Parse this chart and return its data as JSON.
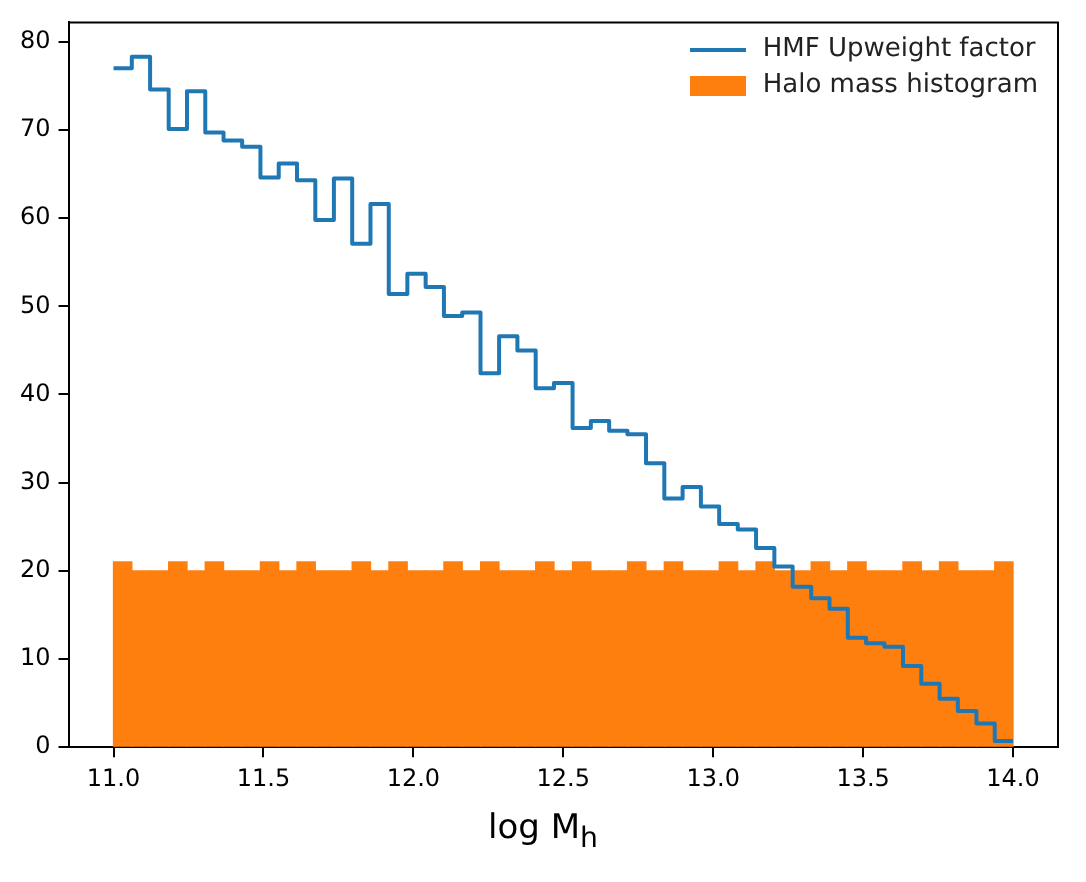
{
  "chart_data": {
    "type": "histogram",
    "xlabel": "log M$_{h}$",
    "bins": [
      11,
      11.061,
      11.122,
      11.184,
      11.245,
      11.306,
      11.367,
      11.429,
      11.49,
      11.551,
      11.612,
      11.673,
      11.735,
      11.796,
      11.857,
      11.918,
      11.98,
      12.041,
      12.102,
      12.163,
      12.224,
      12.286,
      12.347,
      12.408,
      12.469,
      12.531,
      12.592,
      12.653,
      12.714,
      12.776,
      12.837,
      12.898,
      12.959,
      13.02,
      13.082,
      13.143,
      13.204,
      13.265,
      13.327,
      13.388,
      13.449,
      13.51,
      13.571,
      13.633,
      13.694,
      13.755,
      13.816,
      13.878,
      13.939,
      14
    ],
    "series": [
      {
        "name": "HMF Upweight factor",
        "type": "step",
        "color": "#1f77b4",
        "x": [
          11,
          11.061,
          11.122,
          11.184,
          11.245,
          11.306,
          11.367,
          11.429,
          11.49,
          11.551,
          11.612,
          11.673,
          11.735,
          11.796,
          11.857,
          11.918,
          11.98,
          12.041,
          12.102,
          12.163,
          12.224,
          12.286,
          12.347,
          12.408,
          12.469,
          12.531,
          12.592,
          12.653,
          12.714,
          12.776,
          12.837,
          12.898,
          12.959,
          13.02,
          13.082,
          13.143,
          13.204,
          13.265,
          13.327,
          13.388,
          13.449,
          13.51,
          13.571,
          13.633,
          13.694,
          13.755,
          13.816,
          13.878,
          13.939,
          14
        ],
        "values": [
          77.0,
          78.3,
          74.6,
          70.1,
          74.4,
          69.7,
          68.8,
          68.1,
          64.6,
          66.2,
          64.3,
          59.8,
          64.5,
          57.1,
          61.6,
          51.4,
          53.7,
          52.2,
          48.9,
          49.3,
          42.4,
          46.6,
          45.0,
          40.7,
          41.3,
          36.2,
          37.0,
          35.9,
          35.5,
          32.2,
          28.2,
          29.5,
          27.3,
          25.3,
          24.7,
          22.6,
          20.5,
          18.2,
          16.9,
          15.7,
          12.4,
          11.8,
          11.4,
          9.2,
          7.2,
          5.5,
          4.1,
          2.7,
          0.7,
          0.7
        ]
      },
      {
        "name": "Halo mass histogram",
        "type": "histogram",
        "color": "#ff7f0e",
        "values": [
          21,
          20,
          20,
          21,
          20,
          21,
          20,
          20,
          21,
          20,
          21,
          20,
          20,
          21,
          20,
          21,
          20,
          20,
          21,
          20,
          21,
          20,
          20,
          21,
          20,
          21,
          20,
          20,
          21,
          20,
          21,
          20,
          20,
          21,
          20,
          21,
          20,
          20,
          21,
          20,
          21,
          20,
          20,
          21,
          20,
          21,
          20,
          20,
          21
        ]
      }
    ],
    "xlim": [
      10.85,
      14.15
    ],
    "xticks": [
      {
        "value": 11,
        "label": "11.0"
      },
      {
        "value": 11.5,
        "label": "11.5"
      },
      {
        "value": 12,
        "label": "12.0"
      },
      {
        "value": 12.5,
        "label": "12.5"
      },
      {
        "value": 13,
        "label": "13.0"
      },
      {
        "value": 13.5,
        "label": "13.5"
      },
      {
        "value": 14,
        "label": "14.0"
      }
    ],
    "ylim": [
      0,
      82.2
    ],
    "yticks": [
      0,
      10,
      20,
      30,
      40,
      50,
      60,
      70,
      80
    ],
    "grid": false,
    "legend": "top right",
    "marker": "none",
    "line_style": "solid"
  }
}
